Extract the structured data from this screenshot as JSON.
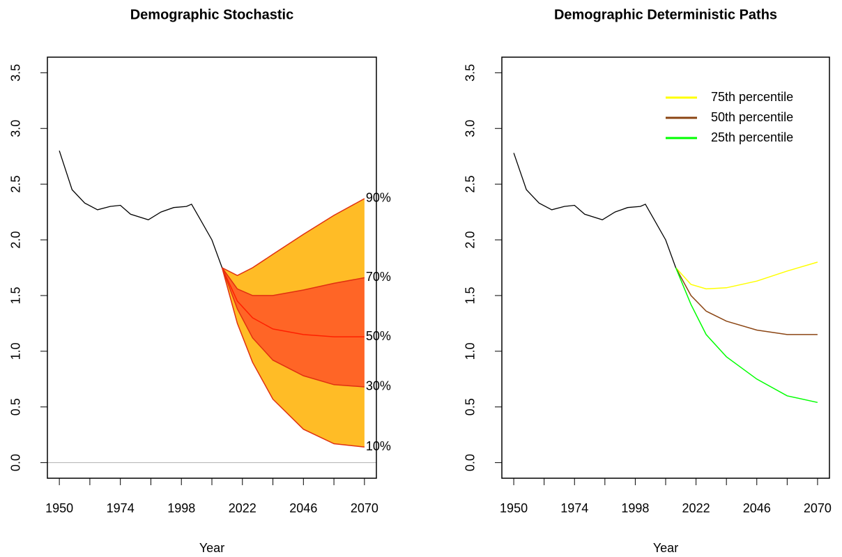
{
  "chart_data": [
    {
      "type": "fan",
      "title": "Demographic Stochastic",
      "xlabel": "Year",
      "xlim": [
        1945.3,
        2074.7
      ],
      "ylim": [
        -0.14,
        3.64
      ],
      "xticks": [
        1950,
        {
          "value": 1962,
          "label": null
        },
        1974,
        {
          "value": 1986,
          "label": null
        },
        1998,
        {
          "value": 2010,
          "label": null
        },
        2022,
        {
          "value": 2034,
          "label": null
        },
        2046,
        {
          "value": 2058,
          "label": null
        },
        2070
      ],
      "yticks": [
        {
          "value": 0,
          "label": "0.0"
        },
        {
          "value": 0.5,
          "label": "0.5"
        },
        {
          "value": 1,
          "label": "1.0"
        },
        {
          "value": 1.5,
          "label": "1.5"
        },
        {
          "value": 2,
          "label": "2.0"
        },
        {
          "value": 2.5,
          "label": "2.5"
        },
        {
          "value": 3,
          "label": "3.0"
        },
        {
          "value": 3.5,
          "label": "3.5"
        }
      ],
      "hline": 0,
      "hline_color": "#b0b0b0",
      "history": {
        "color": "#000000",
        "x": [
          1950,
          1955,
          1960,
          1965,
          1970,
          1974,
          1978,
          1985,
          1990,
          1995,
          2000,
          2002,
          2005,
          2010,
          2014
        ],
        "values": [
          2.8,
          2.45,
          2.33,
          2.27,
          2.3,
          2.31,
          2.23,
          2.18,
          2.25,
          2.29,
          2.3,
          2.32,
          2.2,
          2.0,
          1.75
        ]
      },
      "x": [
        2014,
        2020,
        2026,
        2034,
        2046,
        2058,
        2070
      ],
      "series": [
        {
          "name": "90%",
          "color": "#e03010",
          "values": [
            1.75,
            1.68,
            1.75,
            1.87,
            2.05,
            2.22,
            2.37
          ]
        },
        {
          "name": "70%",
          "color": "#e03010",
          "values": [
            1.75,
            1.56,
            1.5,
            1.5,
            1.55,
            1.61,
            1.66
          ]
        },
        {
          "name": "50%",
          "color": "#ff2000",
          "values": [
            1.75,
            1.45,
            1.3,
            1.2,
            1.15,
            1.13,
            1.13
          ]
        },
        {
          "name": "30%",
          "color": "#e03010",
          "values": [
            1.75,
            1.38,
            1.12,
            0.92,
            0.78,
            0.7,
            0.68
          ]
        },
        {
          "name": "10%",
          "color": "#e03010",
          "values": [
            1.75,
            1.25,
            0.9,
            0.57,
            0.3,
            0.17,
            0.14
          ]
        }
      ],
      "band_colors": [
        "#ffb000",
        "#ff4a00",
        "#ff4a00",
        "#ffb000"
      ]
    },
    {
      "type": "line",
      "title": "Demographic Deterministic Paths",
      "xlabel": "Year",
      "xlim": [
        1945.3,
        2074.7
      ],
      "ylim": [
        -0.14,
        3.64
      ],
      "xticks": [
        1950,
        {
          "value": 1962,
          "label": null
        },
        1974,
        {
          "value": 1986,
          "label": null
        },
        1998,
        {
          "value": 2010,
          "label": null
        },
        2022,
        {
          "value": 2034,
          "label": null
        },
        2046,
        {
          "value": 2058,
          "label": null
        },
        2070
      ],
      "yticks": [
        {
          "value": 0,
          "label": "0.0"
        },
        {
          "value": 0.5,
          "label": "0.5"
        },
        {
          "value": 1,
          "label": "1.0"
        },
        {
          "value": 1.5,
          "label": "1.5"
        },
        {
          "value": 2,
          "label": "2.0"
        },
        {
          "value": 2.5,
          "label": "2.5"
        },
        {
          "value": 3,
          "label": "3.0"
        },
        {
          "value": 3.5,
          "label": "3.5"
        }
      ],
      "legend": "topright",
      "history": {
        "color": "#000000",
        "x": [
          1950,
          1955,
          1960,
          1965,
          1970,
          1974,
          1978,
          1985,
          1990,
          1995,
          2000,
          2002,
          2005,
          2010,
          2014
        ],
        "values": [
          2.78,
          2.45,
          2.33,
          2.27,
          2.3,
          2.31,
          2.23,
          2.18,
          2.25,
          2.29,
          2.3,
          2.32,
          2.2,
          2.0,
          1.75
        ]
      },
      "x": [
        2014,
        2020,
        2026,
        2034,
        2046,
        2058,
        2070
      ],
      "series": [
        {
          "name": "75th percentile",
          "color": "#ffff00",
          "values": [
            1.75,
            1.6,
            1.56,
            1.57,
            1.63,
            1.72,
            1.8
          ]
        },
        {
          "name": "50th percentile",
          "color": "#8b4513",
          "values": [
            1.75,
            1.5,
            1.36,
            1.27,
            1.19,
            1.15,
            1.15
          ]
        },
        {
          "name": "25th percentile",
          "color": "#00ff00",
          "values": [
            1.75,
            1.42,
            1.15,
            0.95,
            0.75,
            0.6,
            0.54
          ]
        }
      ]
    }
  ]
}
